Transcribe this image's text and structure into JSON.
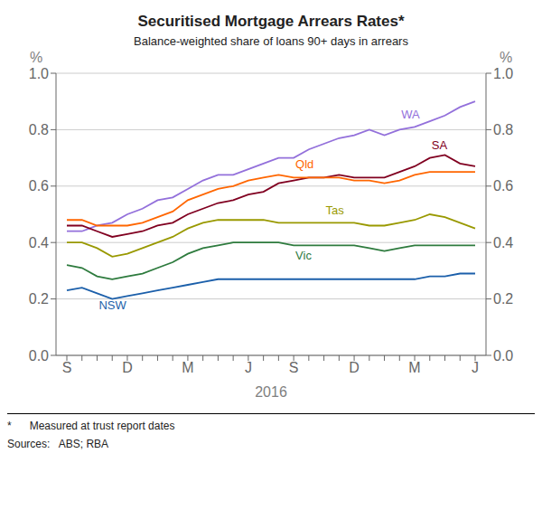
{
  "chart_data": {
    "type": "line",
    "title": "Securitised Mortgage Arrears Rates*",
    "subtitle": "Balance-weighted share of loans 90+ days in arrears",
    "x_label": "2016",
    "y_label": "%",
    "y2_label": "%",
    "footnote": "*      Measured at trust report dates",
    "sources": "Sources:   ABS; RBA",
    "categories": [
      "S",
      null,
      null,
      null,
      "D",
      null,
      null,
      null,
      "M",
      null,
      null,
      null,
      "J",
      null,
      null,
      "S",
      null,
      null,
      null,
      "D",
      null,
      null,
      null,
      "M",
      null,
      null,
      null,
      "J"
    ],
    "series": [
      {
        "name": "WA",
        "color": "#9370DB",
        "values": [
          0.44,
          0.44,
          0.46,
          0.47,
          0.5,
          0.52,
          0.55,
          0.56,
          0.59,
          0.62,
          0.64,
          0.64,
          0.66,
          0.68,
          0.7,
          0.7,
          0.73,
          0.75,
          0.77,
          0.78,
          0.8,
          0.78,
          0.8,
          0.81,
          0.83,
          0.85,
          0.88,
          0.9
        ]
      },
      {
        "name": "SA",
        "color": "#800020",
        "values": [
          0.46,
          0.46,
          0.44,
          0.42,
          0.43,
          0.44,
          0.46,
          0.47,
          0.5,
          0.52,
          0.54,
          0.55,
          0.57,
          0.58,
          0.61,
          0.62,
          0.63,
          0.63,
          0.64,
          0.63,
          0.63,
          0.63,
          0.65,
          0.67,
          0.7,
          0.71,
          0.68,
          0.67
        ]
      },
      {
        "name": "Qld",
        "color": "#FF6600",
        "values": [
          0.48,
          0.48,
          0.46,
          0.46,
          0.46,
          0.47,
          0.49,
          0.51,
          0.55,
          0.57,
          0.59,
          0.6,
          0.62,
          0.63,
          0.64,
          0.63,
          0.63,
          0.63,
          0.63,
          0.62,
          0.62,
          0.61,
          0.62,
          0.64,
          0.65,
          0.65,
          0.65,
          0.65
        ]
      },
      {
        "name": "Tas",
        "color": "#999900",
        "values": [
          0.4,
          0.4,
          0.38,
          0.35,
          0.36,
          0.38,
          0.4,
          0.42,
          0.45,
          0.47,
          0.48,
          0.48,
          0.48,
          0.48,
          0.47,
          0.47,
          0.47,
          0.47,
          0.47,
          0.47,
          0.46,
          0.46,
          0.47,
          0.48,
          0.5,
          0.49,
          0.47,
          0.45
        ]
      },
      {
        "name": "Vic",
        "color": "#2E7B3E",
        "values": [
          0.32,
          0.31,
          0.28,
          0.27,
          0.28,
          0.29,
          0.31,
          0.33,
          0.36,
          0.38,
          0.39,
          0.4,
          0.4,
          0.4,
          0.4,
          0.39,
          0.39,
          0.39,
          0.39,
          0.39,
          0.38,
          0.37,
          0.38,
          0.39,
          0.39,
          0.39,
          0.39,
          0.39
        ]
      },
      {
        "name": "NSW",
        "color": "#1B5FAA",
        "values": [
          0.23,
          0.24,
          0.22,
          0.2,
          0.21,
          0.22,
          0.23,
          0.24,
          0.25,
          0.26,
          0.27,
          0.27,
          0.27,
          0.27,
          0.27,
          0.27,
          0.27,
          0.27,
          0.27,
          0.27,
          0.27,
          0.27,
          0.27,
          0.27,
          0.28,
          0.28,
          0.29,
          0.29
        ]
      }
    ],
    "ylim": [
      0.0,
      1.0
    ],
    "yticks": [
      {
        "value": 0.0,
        "label": "0.0"
      },
      {
        "value": 0.2,
        "label": "0.2"
      },
      {
        "value": 0.4,
        "label": "0.4"
      },
      {
        "value": 0.6,
        "label": "0.6"
      },
      {
        "value": 0.8,
        "label": "0.8"
      },
      {
        "value": 1.0,
        "label": "1.0"
      }
    ],
    "y2lim": [
      0.0,
      1.0
    ],
    "y2ticks": [
      {
        "value": 0.0,
        "label": "0.0"
      },
      {
        "value": 0.2,
        "label": "0.2"
      },
      {
        "value": 0.4,
        "label": "0.4"
      },
      {
        "value": 0.6,
        "label": "0.6"
      },
      {
        "value": 0.8,
        "label": "0.8"
      },
      {
        "value": 1.0,
        "label": "1.0"
      }
    ],
    "grid": true
  }
}
